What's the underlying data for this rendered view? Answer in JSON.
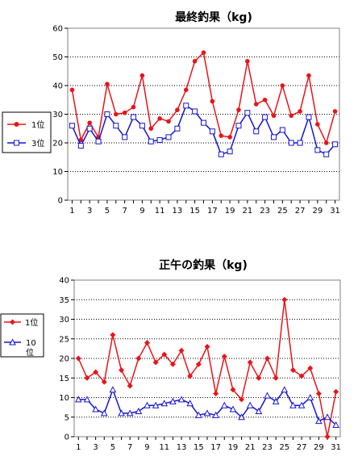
{
  "chart_data": [
    {
      "type": "line",
      "title": "最終釣果（kg)",
      "x": [
        1,
        2,
        3,
        4,
        5,
        6,
        7,
        8,
        9,
        10,
        11,
        12,
        13,
        14,
        15,
        16,
        17,
        18,
        19,
        20,
        21,
        22,
        23,
        24,
        25,
        26,
        27,
        28,
        29,
        30,
        31
      ],
      "x_tick_labels": [
        "1",
        "3",
        "5",
        "7",
        "9",
        "11",
        "13",
        "15",
        "17",
        "19",
        "21",
        "23",
        "25",
        "27",
        "29",
        "31"
      ],
      "ylim": [
        0,
        60
      ],
      "y_ticks": [
        0,
        10,
        20,
        30,
        40,
        50,
        60
      ],
      "grid": true,
      "legend_position": "left",
      "series": [
        {
          "name": "1位",
          "color": "#e8141a",
          "marker": "circle",
          "values": [
            38.5,
            21,
            27,
            22,
            40.5,
            30,
            30.5,
            32.5,
            43.5,
            25,
            28.5,
            27.5,
            31.5,
            38.5,
            48.5,
            51.5,
            34.5,
            22.5,
            22,
            31.5,
            48.5,
            33.5,
            35,
            29.5,
            40,
            29.5,
            31,
            43.5,
            26.5,
            20,
            31
          ]
        },
        {
          "name": "3位",
          "color": "#1515d0",
          "marker": "square",
          "values": [
            26,
            19,
            25,
            20.5,
            30,
            26,
            22,
            29,
            26,
            20.5,
            21,
            22,
            25,
            33,
            31,
            27,
            24,
            16,
            17,
            26,
            30.5,
            24,
            29,
            22,
            24.5,
            20,
            20,
            29,
            17.5,
            16,
            19.5
          ]
        }
      ]
    },
    {
      "type": "line",
      "title": "正午の釣果（kg)",
      "x": [
        1,
        2,
        3,
        4,
        5,
        6,
        7,
        8,
        9,
        10,
        11,
        12,
        13,
        14,
        15,
        16,
        17,
        18,
        19,
        20,
        21,
        22,
        23,
        24,
        25,
        26,
        27,
        28,
        29,
        30,
        31
      ],
      "x_tick_labels": [
        "1",
        "3",
        "5",
        "7",
        "9",
        "11",
        "13",
        "15",
        "17",
        "19",
        "21",
        "23",
        "25",
        "27",
        "29",
        "31"
      ],
      "ylim": [
        0,
        40
      ],
      "y_ticks": [
        0,
        5,
        10,
        15,
        20,
        25,
        30,
        35,
        40
      ],
      "grid": true,
      "legend_position": "left",
      "series": [
        {
          "name": "1位",
          "color": "#e8141a",
          "marker": "diamond",
          "values": [
            20,
            15,
            16.5,
            14,
            26,
            17,
            13,
            20,
            24,
            19,
            21,
            18.5,
            22,
            15.5,
            18.5,
            23,
            11,
            20.5,
            12,
            9.5,
            19,
            15,
            20,
            15,
            35,
            17,
            15.5,
            17.5,
            11,
            0,
            11.5
          ]
        },
        {
          "name": "10位",
          "color": "#1515d0",
          "marker": "triangle",
          "values": [
            9.5,
            9.5,
            7,
            6,
            12,
            6,
            6,
            6.5,
            8,
            8,
            8.5,
            9,
            9.5,
            8.5,
            5.5,
            6,
            5.5,
            8,
            7,
            5,
            8,
            6.5,
            10.5,
            9,
            12,
            8,
            8,
            10,
            4,
            5,
            3
          ]
        }
      ]
    }
  ]
}
